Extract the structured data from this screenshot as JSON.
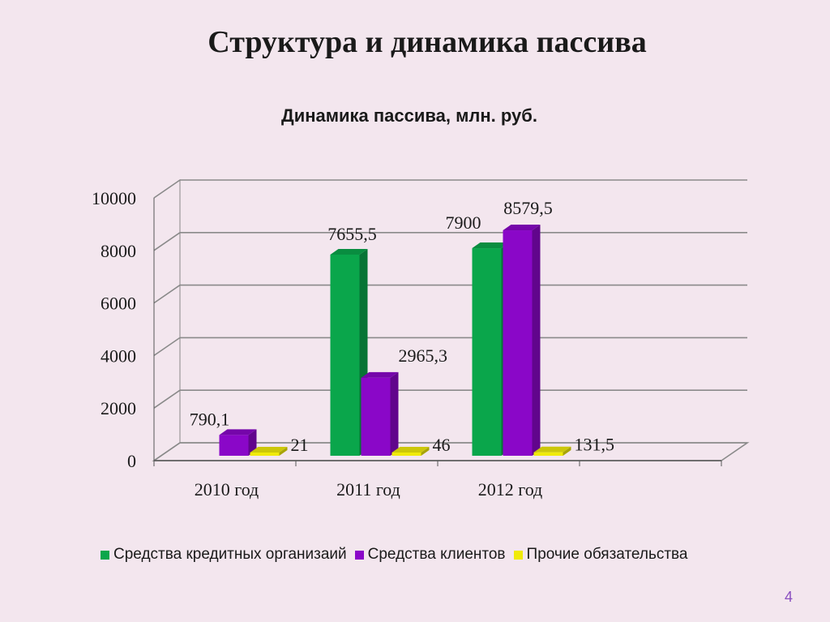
{
  "slide": {
    "title": "Структура и динамика пассива",
    "page_number": "4"
  },
  "chart_data": {
    "type": "bar",
    "title": "Динамика пассива, млн. руб.",
    "categories": [
      "2010 год",
      "2011 год",
      "2012 год"
    ],
    "ylim": [
      0,
      10000
    ],
    "yticks": [
      "0",
      "2000",
      "4000",
      "6000",
      "8000",
      "10000"
    ],
    "grid": true,
    "legend_position": "bottom",
    "series": [
      {
        "name": "Средства кредитных организаий",
        "color": "#0aa64b",
        "values": [
          null,
          7655.5,
          7900
        ],
        "labels": [
          "",
          "7655,5",
          "7900"
        ]
      },
      {
        "name": "Средства клиентов",
        "color": "#8a07c8",
        "values": [
          790.1,
          2965.3,
          8579.5
        ],
        "labels": [
          "790,1",
          "2965,3",
          "8579,5"
        ]
      },
      {
        "name": "Прочие обязательства",
        "color": "#f0ea0a",
        "values": [
          21,
          46,
          131.5
        ],
        "labels": [
          "21",
          "46",
          "131,5"
        ]
      }
    ]
  }
}
